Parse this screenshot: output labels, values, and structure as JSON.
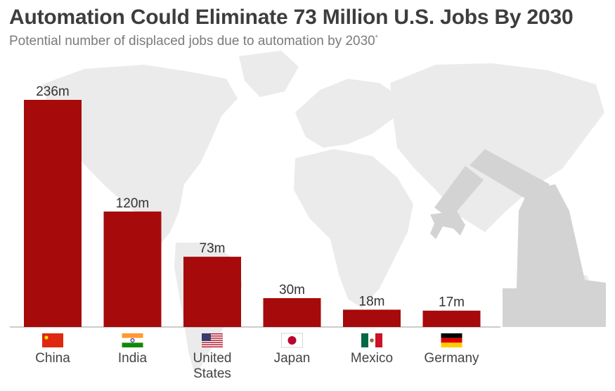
{
  "title": "Automation Could Eliminate 73 Million U.S. Jobs By 2030",
  "subtitle": "Potential number of displaced jobs due to automation by 2030",
  "subtitle_mark": "*",
  "colors": {
    "bar": "#a60a0a",
    "map": "#ebebeb",
    "robot": "#d3d3d3"
  },
  "chart_data": {
    "type": "bar",
    "categories": [
      "China",
      "India",
      "United States",
      "Japan",
      "Mexico",
      "Germany"
    ],
    "category_lines": [
      [
        "China"
      ],
      [
        "India"
      ],
      [
        "United",
        "States"
      ],
      [
        "Japan"
      ],
      [
        "Mexico"
      ],
      [
        "Germany"
      ]
    ],
    "values": [
      236,
      120,
      73,
      30,
      18,
      17
    ],
    "value_labels": [
      "236m",
      "120m",
      "73m",
      "30m",
      "18m",
      "17m"
    ],
    "flags": [
      "china-flag",
      "india-flag",
      "united-states-flag",
      "japan-flag",
      "mexico-flag",
      "germany-flag"
    ],
    "unit": "m",
    "ylim": [
      0,
      236
    ],
    "grid": false
  }
}
